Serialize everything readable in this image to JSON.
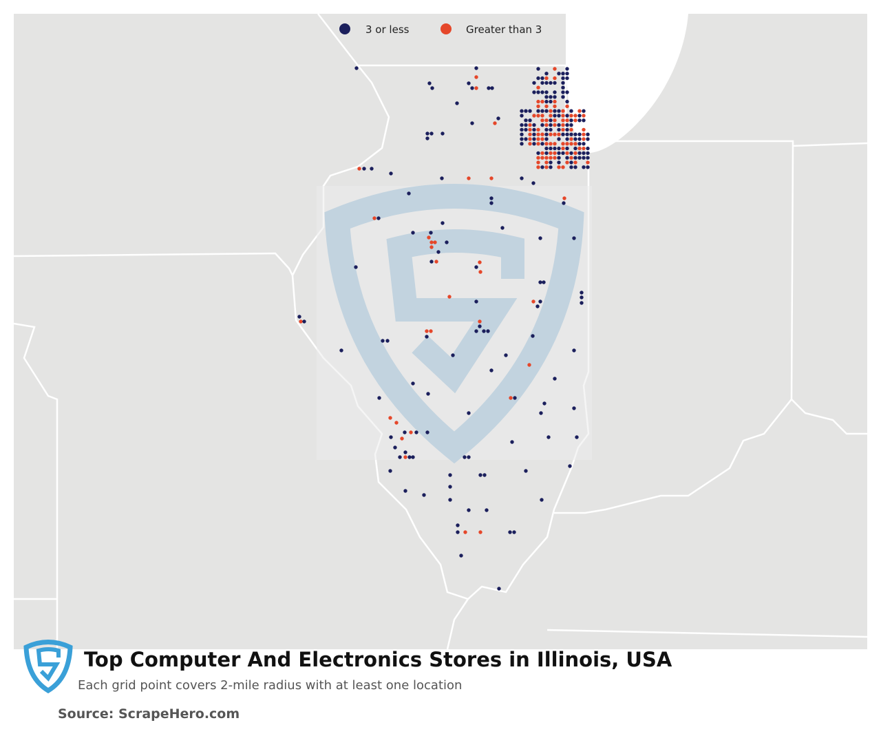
{
  "legend": {
    "items": [
      {
        "label": "3 or less",
        "color": "#1b1f5c"
      },
      {
        "label": "Greater than 3",
        "color": "#e5472a"
      }
    ]
  },
  "title": "Top Computer And Electronics Stores in Illinois, USA",
  "subtitle": "Each grid point covers 2-mile radius with at least one location",
  "source": "Source: ScrapeHero.com"
}
